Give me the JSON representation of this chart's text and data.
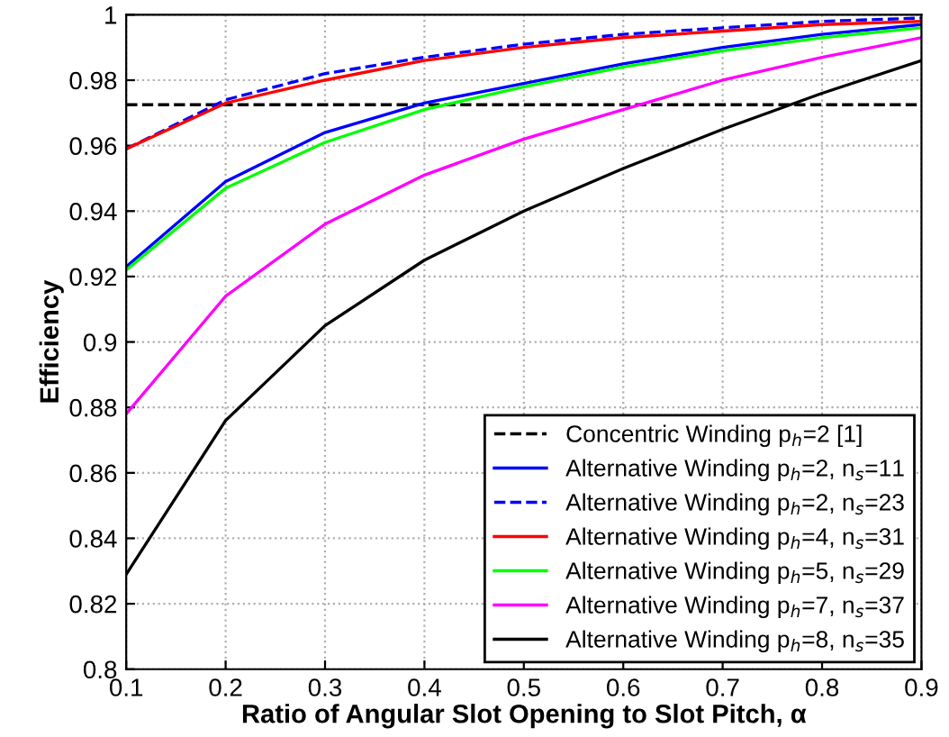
{
  "chart_data": {
    "type": "line",
    "xlabel": "Ratio of Angular Slot Opening to Slot Pitch, α",
    "ylabel": "Efficiency",
    "x": [
      0.1,
      0.2,
      0.3,
      0.4,
      0.5,
      0.6,
      0.7,
      0.8,
      0.9
    ],
    "xlim": [
      0.1,
      0.9
    ],
    "xticks": [
      0.1,
      0.2,
      0.3,
      0.4,
      0.5,
      0.6,
      0.7,
      0.8,
      0.9
    ],
    "ylim": [
      0.8,
      1
    ],
    "yticks": [
      0.8,
      0.82,
      0.84,
      0.86,
      0.88,
      0.9,
      0.92,
      0.94,
      0.96,
      0.98,
      1
    ],
    "grid": true,
    "legend": "bottom right",
    "marker": "none",
    "series": [
      {
        "name": "Concentric Winding p$_{h}$=2 [1]",
        "color": "#000000",
        "line_style": "dashed",
        "values": [
          0.9725,
          0.9725,
          0.9725,
          0.9725,
          0.9725,
          0.9725,
          0.9725,
          0.9725,
          0.9725
        ]
      },
      {
        "name": "Alternative Winding p$_{h}$=2, n$_{s}$=11",
        "color": "#0000ff",
        "line_style": "solid",
        "values": [
          0.923,
          0.949,
          0.964,
          0.973,
          0.979,
          0.985,
          0.99,
          0.994,
          0.997
        ]
      },
      {
        "name": "Alternative Winding p$_{h}$=2, n$_{s}$=23",
        "color": "#0000ff",
        "line_style": "dashed",
        "values": [
          0.959,
          0.974,
          0.982,
          0.987,
          0.991,
          0.994,
          0.996,
          0.998,
          0.999
        ]
      },
      {
        "name": "Alternative Winding p$_{h}$=4, n$_{s}$=31",
        "color": "#ff0000",
        "line_style": "solid",
        "values": [
          0.959,
          0.973,
          0.98,
          0.986,
          0.99,
          0.993,
          0.995,
          0.997,
          0.998
        ]
      },
      {
        "name": "Alternative Winding p$_{h}$=5, n$_{s}$=29",
        "color": "#00ff00",
        "line_style": "solid",
        "values": [
          0.922,
          0.947,
          0.961,
          0.971,
          0.978,
          0.984,
          0.989,
          0.993,
          0.996
        ]
      },
      {
        "name": "Alternative Winding p$_{h}$=7, n$_{s}$=37",
        "color": "#ff00ff",
        "line_style": "solid",
        "values": [
          0.878,
          0.914,
          0.936,
          0.951,
          0.962,
          0.971,
          0.98,
          0.987,
          0.993
        ]
      },
      {
        "name": "Alternative Winding p$_{h}$=8, n$_{s}$=35",
        "color": "#000000",
        "line_style": "solid",
        "values": [
          0.829,
          0.876,
          0.905,
          0.925,
          0.94,
          0.953,
          0.965,
          0.976,
          0.986
        ]
      }
    ]
  }
}
